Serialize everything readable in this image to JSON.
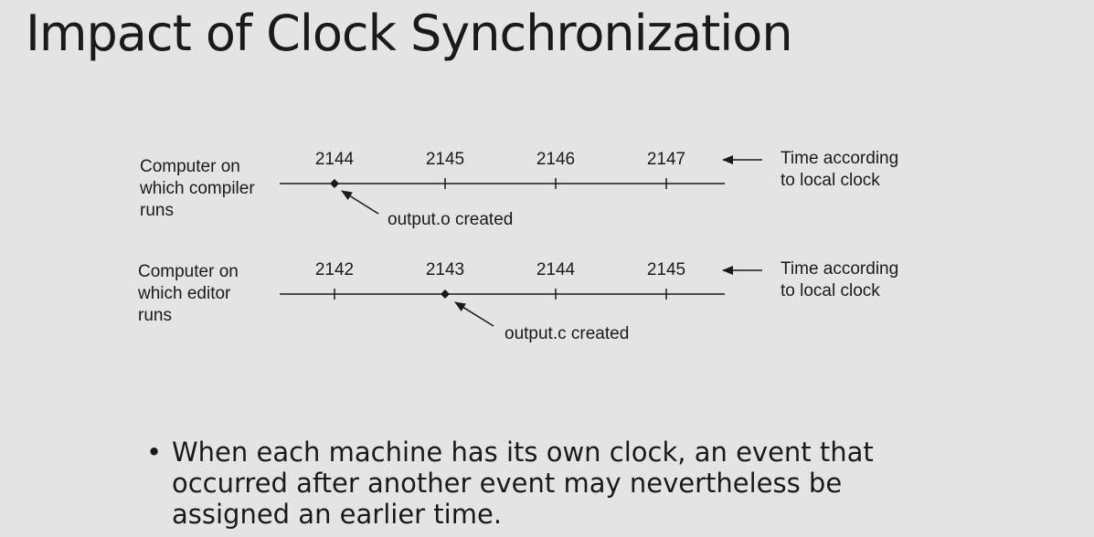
{
  "slide": {
    "title": "Impact of Clock Synchronization"
  },
  "timelines": [
    {
      "label_lines": [
        "Computer on",
        "which compiler",
        "runs"
      ],
      "ticks": [
        "2144",
        "2145",
        "2146",
        "2147"
      ],
      "event_at_tick": 0,
      "event_label": "output.o created",
      "side_label_lines": [
        "Time according",
        "to local clock"
      ]
    },
    {
      "label_lines": [
        "Computer on",
        "which editor",
        "runs"
      ],
      "ticks": [
        "2142",
        "2143",
        "2144",
        "2145"
      ],
      "event_at_tick": 1,
      "event_label": "output.c created",
      "side_label_lines": [
        "Time according",
        "to local clock"
      ]
    }
  ],
  "bullet": {
    "symbol": "•",
    "text": "When each machine has its own clock, an event that occurred after another event may nevertheless be assigned an earlier time."
  }
}
